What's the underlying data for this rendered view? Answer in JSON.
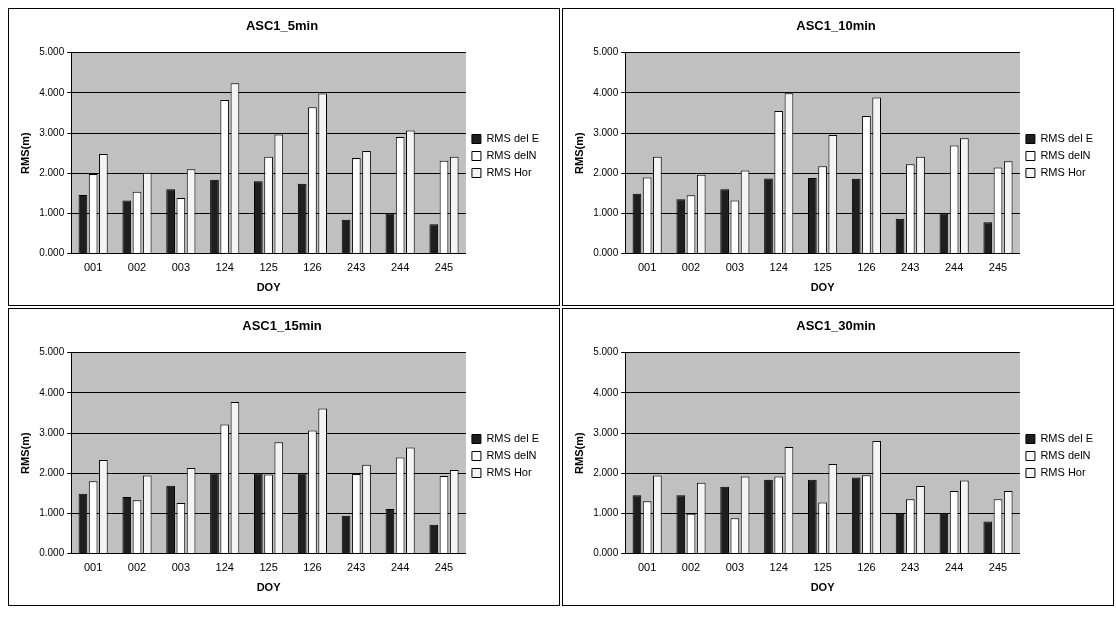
{
  "chart_data": [
    {
      "type": "bar",
      "title": "ASC1_5min",
      "xlabel": "DOY",
      "ylabel": "RMS(m)",
      "categories": [
        "001",
        "002",
        "003",
        "124",
        "125",
        "126",
        "243",
        "244",
        "245"
      ],
      "ylim": [
        0,
        5
      ],
      "yticks": [
        {
          "value": 0,
          "label": "0.000"
        },
        {
          "value": 1,
          "label": "1.000"
        },
        {
          "value": 2,
          "label": "2.000"
        },
        {
          "value": 3,
          "label": "3.000"
        },
        {
          "value": 4,
          "label": "4.000"
        },
        {
          "value": 5,
          "label": "5.000"
        }
      ],
      "grid": "y",
      "legend": "right",
      "series": [
        {
          "name": "RMS del E",
          "color": "#1e1e1e",
          "values": [
            1.46,
            1.32,
            1.6,
            1.84,
            1.8,
            1.74,
            0.84,
            1.0,
            0.73
          ]
        },
        {
          "name": "RMS delN",
          "color": "#ffffff",
          "values": [
            1.98,
            1.54,
            1.38,
            3.82,
            2.41,
            3.64,
            2.38,
            2.9,
            2.31
          ]
        },
        {
          "name": "RMS Hor",
          "color": "#f4f4f4",
          "values": [
            2.48,
            2.01,
            2.1,
            4.24,
            2.96,
            3.98,
            2.55,
            3.06,
            2.41
          ]
        }
      ]
    },
    {
      "type": "bar",
      "title": "ASC1_10min",
      "xlabel": "DOY",
      "ylabel": "RMS(m)",
      "categories": [
        "001",
        "002",
        "003",
        "124",
        "125",
        "126",
        "243",
        "244",
        "245"
      ],
      "ylim": [
        0,
        5
      ],
      "yticks": [
        {
          "value": 0,
          "label": "0.000"
        },
        {
          "value": 1,
          "label": "1.000"
        },
        {
          "value": 2,
          "label": "2.000"
        },
        {
          "value": 3,
          "label": "3.000"
        },
        {
          "value": 4,
          "label": "4.000"
        },
        {
          "value": 5,
          "label": "5.000"
        }
      ],
      "grid": "y",
      "legend": "right",
      "series": [
        {
          "name": "RMS del E",
          "color": "#1e1e1e",
          "values": [
            1.49,
            1.35,
            1.6,
            1.87,
            1.88,
            1.86,
            0.87,
            1.0,
            0.78
          ]
        },
        {
          "name": "RMS delN",
          "color": "#ffffff",
          "values": [
            1.89,
            1.45,
            1.32,
            3.55,
            2.17,
            3.42,
            2.22,
            2.69,
            2.14
          ]
        },
        {
          "name": "RMS Hor",
          "color": "#f4f4f4",
          "values": [
            2.41,
            1.96,
            2.07,
            3.99,
            2.95,
            3.88,
            2.41,
            2.87,
            2.3
          ]
        }
      ]
    },
    {
      "type": "bar",
      "title": "ASC1_15min",
      "xlabel": "DOY",
      "ylabel": "RMS(m)",
      "categories": [
        "001",
        "002",
        "003",
        "124",
        "125",
        "126",
        "243",
        "244",
        "245"
      ],
      "ylim": [
        0,
        5
      ],
      "yticks": [
        {
          "value": 0,
          "label": "0.000"
        },
        {
          "value": 1,
          "label": "1.000"
        },
        {
          "value": 2,
          "label": "2.000"
        },
        {
          "value": 3,
          "label": "3.000"
        },
        {
          "value": 4,
          "label": "4.000"
        },
        {
          "value": 5,
          "label": "5.000"
        }
      ],
      "grid": "y",
      "legend": "right",
      "series": [
        {
          "name": "RMS del E",
          "color": "#1e1e1e",
          "values": [
            1.49,
            1.41,
            1.69,
            1.99,
            1.99,
            1.99,
            0.94,
            1.11,
            0.72
          ]
        },
        {
          "name": "RMS delN",
          "color": "#ffffff",
          "values": [
            1.8,
            1.33,
            1.26,
            3.21,
            1.97,
            3.06,
            1.98,
            2.39,
            1.93
          ]
        },
        {
          "name": "RMS Hor",
          "color": "#f4f4f4",
          "values": [
            2.33,
            1.94,
            2.13,
            3.77,
            2.77,
            3.61,
            2.21,
            2.64,
            2.08
          ]
        }
      ]
    },
    {
      "type": "bar",
      "title": "ASC1_30min",
      "xlabel": "DOY",
      "ylabel": "RMS(m)",
      "categories": [
        "001",
        "002",
        "003",
        "124",
        "125",
        "126",
        "243",
        "244",
        "245"
      ],
      "ylim": [
        0,
        5
      ],
      "yticks": [
        {
          "value": 0,
          "label": "0.000"
        },
        {
          "value": 1,
          "label": "1.000"
        },
        {
          "value": 2,
          "label": "2.000"
        },
        {
          "value": 3,
          "label": "3.000"
        },
        {
          "value": 4,
          "label": "4.000"
        },
        {
          "value": 5,
          "label": "5.000"
        }
      ],
      "grid": "y",
      "legend": "right",
      "series": [
        {
          "name": "RMS del E",
          "color": "#1e1e1e",
          "values": [
            1.45,
            1.45,
            1.66,
            1.84,
            1.84,
            1.89,
            0.99,
            0.99,
            0.8
          ]
        },
        {
          "name": "RMS delN",
          "color": "#ffffff",
          "values": [
            1.3,
            0.99,
            0.88,
            1.92,
            1.27,
            1.95,
            1.35,
            1.56,
            1.35
          ]
        },
        {
          "name": "RMS Hor",
          "color": "#f4f4f4",
          "values": [
            1.94,
            1.76,
            1.92,
            2.65,
            2.23,
            2.8,
            1.68,
            1.82,
            1.56
          ]
        }
      ]
    }
  ]
}
